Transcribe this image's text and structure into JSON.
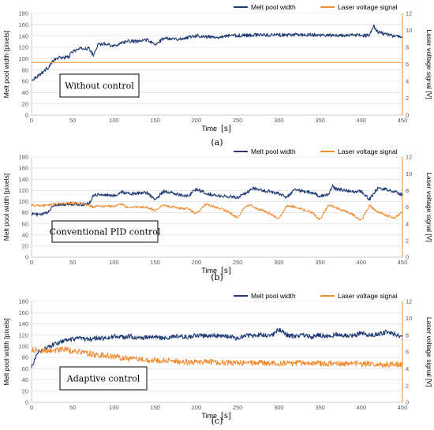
{
  "colors": {
    "width_series": "#1f3b73",
    "voltage_series": "#f28a2e",
    "grid": "#d9d9d9"
  },
  "chart_data": [
    {
      "type": "line",
      "caption": "(a)",
      "note": "Without control",
      "xlabel": "Time",
      "xunit": "[s]",
      "ylabel": "Melt pool width [pixels]",
      "y2label": "Laser voltage signal [V]",
      "xlim": [
        0,
        450
      ],
      "ylim": [
        0,
        180
      ],
      "y2lim": [
        0,
        12
      ],
      "xticks": [
        "0",
        "50",
        "100",
        "150",
        "200",
        "250",
        "300",
        "350",
        "400",
        "450"
      ],
      "yticks": [
        "0",
        "20",
        "40",
        "60",
        "80",
        "100",
        "120",
        "140",
        "160",
        "180"
      ],
      "y2ticks": [
        "0",
        "2",
        "4",
        "6",
        "8",
        "10",
        "12"
      ],
      "grid": true,
      "legend_position": "top-right",
      "series": [
        {
          "name": "Melt pool width",
          "axis": "left",
          "noise": 3,
          "x": [
            0,
            5,
            10,
            15,
            20,
            25,
            30,
            35,
            40,
            45,
            50,
            60,
            70,
            75,
            80,
            90,
            100,
            110,
            120,
            130,
            140,
            150,
            160,
            170,
            180,
            190,
            200,
            210,
            220,
            230,
            240,
            250,
            260,
            270,
            280,
            290,
            300,
            310,
            320,
            330,
            340,
            350,
            360,
            370,
            380,
            390,
            400,
            410,
            415,
            420,
            430,
            440,
            450
          ],
          "y": [
            62,
            67,
            72,
            78,
            84,
            94,
            100,
            102,
            102,
            103,
            113,
            118,
            118,
            105,
            124,
            127,
            122,
            129,
            131,
            130,
            134,
            124,
            136,
            136,
            134,
            138,
            141,
            139,
            138,
            139,
            141,
            141,
            141,
            142,
            142,
            142,
            142,
            141,
            143,
            142,
            142,
            142,
            141,
            141,
            141,
            142,
            141,
            141,
            158,
            147,
            143,
            140,
            138
          ]
        },
        {
          "name": "Laser voltage signal",
          "axis": "right",
          "noise": 0,
          "x": [
            0,
            450
          ],
          "y": [
            6.2,
            6.2
          ]
        }
      ]
    },
    {
      "type": "line",
      "caption": "(b)",
      "note": "Conventional PID control",
      "xlabel": "Time",
      "xunit": "[s]",
      "ylabel": "Melt pool width [pixels]",
      "y2label": "Laser voltage signal [V]",
      "xlim": [
        0,
        450
      ],
      "ylim": [
        0,
        180
      ],
      "y2lim": [
        0,
        12
      ],
      "xticks": [
        "0",
        "50",
        "100",
        "150",
        "200",
        "250",
        "300",
        "350",
        "400",
        "450"
      ],
      "yticks": [
        "0",
        "20",
        "40",
        "60",
        "80",
        "100",
        "120",
        "140",
        "160",
        "180"
      ],
      "y2ticks": [
        "0",
        "2",
        "4",
        "6",
        "8",
        "10",
        "12"
      ],
      "grid": true,
      "legend_position": "top-right",
      "series": [
        {
          "name": "Melt pool width",
          "axis": "left",
          "noise": 3,
          "x": [
            0,
            10,
            20,
            25,
            30,
            40,
            50,
            60,
            70,
            75,
            80,
            100,
            110,
            115,
            140,
            150,
            160,
            170,
            180,
            190,
            200,
            210,
            220,
            230,
            250,
            260,
            270,
            280,
            290,
            300,
            310,
            320,
            330,
            340,
            350,
            360,
            365,
            370,
            380,
            390,
            400,
            410,
            420,
            430,
            440,
            450
          ],
          "y": [
            78,
            76,
            80,
            92,
            95,
            95,
            96,
            95,
            96,
            112,
            113,
            110,
            118,
            114,
            116,
            104,
            118,
            116,
            112,
            110,
            122,
            116,
            112,
            110,
            108,
            115,
            124,
            120,
            118,
            114,
            108,
            122,
            118,
            116,
            110,
            112,
            128,
            122,
            120,
            118,
            118,
            104,
            124,
            122,
            118,
            112
          ]
        },
        {
          "name": "Laser voltage signal",
          "axis": "right",
          "noise": 0.15,
          "x": [
            0,
            20,
            22,
            30,
            50,
            60,
            70,
            75,
            80,
            100,
            110,
            115,
            140,
            150,
            160,
            170,
            190,
            200,
            210,
            215,
            240,
            250,
            260,
            265,
            290,
            300,
            310,
            320,
            340,
            350,
            360,
            365,
            390,
            400,
            410,
            420,
            440,
            450
          ],
          "y": [
            6.2,
            6.2,
            6.3,
            6.4,
            6.5,
            6.4,
            6.2,
            6.0,
            6.1,
            6.1,
            6.4,
            6.0,
            6.0,
            5.6,
            6.3,
            6.0,
            5.8,
            5.2,
            6.2,
            6.3,
            5.4,
            4.7,
            6.2,
            6.2,
            5.2,
            4.6,
            6.2,
            6.0,
            5.4,
            4.5,
            6.2,
            6.1,
            5.1,
            4.4,
            6.2,
            5.4,
            4.7,
            5.4
          ]
        }
      ]
    },
    {
      "type": "line",
      "caption": "(c)",
      "note": "Adaptive control",
      "xlabel": "Time",
      "xunit": "[s]",
      "ylabel": "Melt pool width [pixels]",
      "y2label": "Laser voltage signal [V]",
      "xlim": [
        0,
        450
      ],
      "ylim": [
        0,
        180
      ],
      "y2lim": [
        0,
        12
      ],
      "xticks": [
        "0",
        "50",
        "100",
        "150",
        "200",
        "250",
        "300",
        "350",
        "400",
        "450"
      ],
      "yticks": [
        "0",
        "20",
        "40",
        "60",
        "80",
        "100",
        "120",
        "140",
        "160",
        "180"
      ],
      "y2ticks": [
        "0",
        "2",
        "4",
        "6",
        "8",
        "10",
        "12"
      ],
      "grid": true,
      "legend_position": "top-right",
      "series": [
        {
          "name": "Melt pool width",
          "axis": "left",
          "noise": 4,
          "x": [
            0,
            5,
            10,
            20,
            30,
            40,
            50,
            60,
            70,
            80,
            90,
            100,
            110,
            120,
            130,
            140,
            150,
            160,
            170,
            180,
            190,
            200,
            210,
            220,
            230,
            240,
            250,
            260,
            270,
            280,
            290,
            300,
            310,
            320,
            330,
            340,
            350,
            360,
            370,
            380,
            390,
            400,
            410,
            420,
            430,
            440,
            450
          ],
          "y": [
            62,
            80,
            92,
            98,
            105,
            110,
            112,
            114,
            112,
            115,
            114,
            118,
            116,
            118,
            114,
            116,
            117,
            114,
            116,
            118,
            116,
            120,
            118,
            120,
            117,
            118,
            114,
            120,
            118,
            121,
            118,
            130,
            120,
            118,
            120,
            117,
            120,
            118,
            121,
            120,
            118,
            124,
            120,
            122,
            125,
            122,
            117
          ]
        },
        {
          "name": "Laser voltage signal",
          "axis": "right",
          "noise": 0.35,
          "x": [
            0,
            5,
            10,
            20,
            30,
            40,
            50,
            60,
            70,
            80,
            90,
            100,
            110,
            130,
            150,
            170,
            190,
            200,
            220,
            250,
            280,
            300,
            330,
            360,
            390,
            420,
            450
          ],
          "y": [
            6.2,
            6.2,
            6.1,
            6.2,
            6.2,
            6.3,
            6.1,
            6.0,
            5.8,
            5.6,
            5.6,
            5.4,
            5.3,
            5.1,
            5.0,
            4.9,
            4.8,
            4.8,
            4.8,
            4.7,
            4.7,
            4.6,
            4.7,
            4.6,
            4.6,
            4.5,
            4.5
          ]
        }
      ]
    }
  ]
}
